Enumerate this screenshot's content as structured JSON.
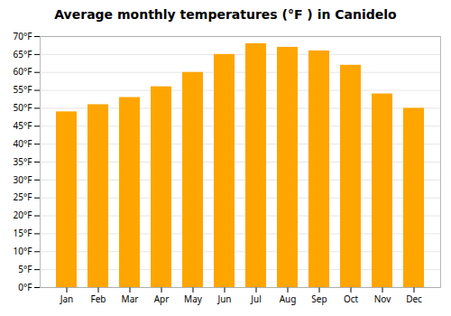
{
  "chart_data": {
    "type": "bar",
    "title": "Average monthly temperatures (°F ) in Canidelo",
    "categories": [
      "Jan",
      "Feb",
      "Mar",
      "Apr",
      "May",
      "Jun",
      "Jul",
      "Aug",
      "Sep",
      "Oct",
      "Nov",
      "Dec"
    ],
    "values": [
      49,
      51,
      53,
      56,
      60,
      65,
      68,
      67,
      66,
      62,
      54,
      50
    ],
    "color": "#FFA500",
    "ylim": [
      0,
      70
    ],
    "yticks": [
      {
        "value": 0,
        "label": "0°F"
      },
      {
        "value": 5,
        "label": "5°F"
      },
      {
        "value": 10,
        "label": "10°F"
      },
      {
        "value": 15,
        "label": "15°F"
      },
      {
        "value": 20,
        "label": "20°F"
      },
      {
        "value": 25,
        "label": "25°F"
      },
      {
        "value": 30,
        "label": "30°F"
      },
      {
        "value": 35,
        "label": "35°F"
      },
      {
        "value": 40,
        "label": "40°F"
      },
      {
        "value": 45,
        "label": "45°F"
      },
      {
        "value": 50,
        "label": "50°F"
      },
      {
        "value": 55,
        "label": "55°F"
      },
      {
        "value": 60,
        "label": "60°F"
      },
      {
        "value": 65,
        "label": "65°F"
      },
      {
        "value": 70,
        "label": "70°F"
      }
    ],
    "grid": true
  }
}
